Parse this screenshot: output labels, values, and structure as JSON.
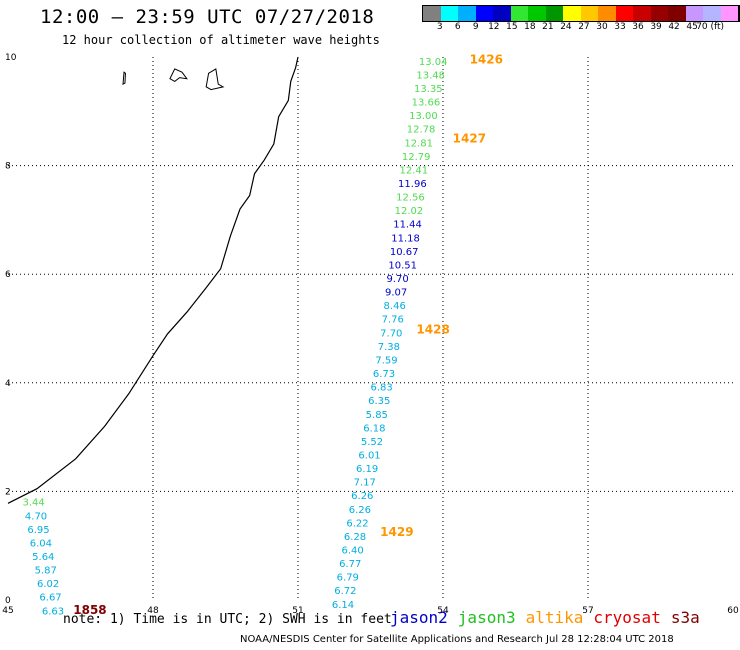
{
  "header": {
    "title": "12:00 – 23:59 UTC 07/27/2018",
    "subtitle": "12 hour collection of altimeter wave heights"
  },
  "colorbar": {
    "colors": [
      "#808080",
      "#00ffff",
      "#00b0ff",
      "#0000ff",
      "#0000c0",
      "#32e632",
      "#00c800",
      "#009600",
      "#ffff00",
      "#ffc800",
      "#ff8c00",
      "#ff0000",
      "#c80000",
      "#960000",
      "#800000",
      "#c896ff",
      "#b4b4ff",
      "#ff96ff",
      "#000000"
    ],
    "labels": [
      "3",
      "6",
      "9",
      "12",
      "15",
      "18",
      "21",
      "24",
      "27",
      "30",
      "33",
      "36",
      "39",
      "42",
      "45",
      "70 (ft)"
    ]
  },
  "chart_data": {
    "type": "scatter",
    "xlim": [
      45,
      60
    ],
    "ylim": [
      0,
      10
    ],
    "x_ticks": [
      "45",
      "48",
      "51",
      "54",
      "57",
      "60"
    ],
    "y_ticks": [
      "0",
      "2",
      "4",
      "6",
      "8",
      "10"
    ],
    "grid": true,
    "satellite_colors": {
      "jason2": "#0000cc",
      "jason3": "#20c020",
      "altika": "#ff9600",
      "cryosat": "#e00000",
      "s3a": "#800000",
      "cyan": "#00aee0",
      "green": "#50dc50",
      "blue": "#0000cc"
    },
    "points": [
      {
        "x": 53.5,
        "y": 9.93,
        "label": "13.04",
        "c": "green"
      },
      {
        "x": 53.45,
        "y": 9.68,
        "label": "13.48",
        "c": "green"
      },
      {
        "x": 53.4,
        "y": 9.43,
        "label": "13.35",
        "c": "green"
      },
      {
        "x": 53.35,
        "y": 9.18,
        "label": "13.66",
        "c": "green"
      },
      {
        "x": 53.3,
        "y": 8.93,
        "label": "13.00",
        "c": "green"
      },
      {
        "x": 53.25,
        "y": 8.68,
        "label": "12.78",
        "c": "green"
      },
      {
        "x": 53.2,
        "y": 8.43,
        "label": "12.81",
        "c": "green"
      },
      {
        "x": 53.15,
        "y": 8.18,
        "label": "12.79",
        "c": "green"
      },
      {
        "x": 53.1,
        "y": 7.93,
        "label": "12.41",
        "c": "green"
      },
      {
        "x": 53.07,
        "y": 7.68,
        "label": "11.96",
        "c": "blue"
      },
      {
        "x": 53.03,
        "y": 7.43,
        "label": "12.56",
        "c": "green"
      },
      {
        "x": 53.0,
        "y": 7.18,
        "label": "12.02",
        "c": "green"
      },
      {
        "x": 52.97,
        "y": 6.93,
        "label": "11.44",
        "c": "blue"
      },
      {
        "x": 52.93,
        "y": 6.68,
        "label": "11.18",
        "c": "blue"
      },
      {
        "x": 52.9,
        "y": 6.43,
        "label": "10.67",
        "c": "blue"
      },
      {
        "x": 52.87,
        "y": 6.18,
        "label": "10.51",
        "c": "blue"
      },
      {
        "x": 52.83,
        "y": 5.93,
        "label": "9.70",
        "c": "blue"
      },
      {
        "x": 52.8,
        "y": 5.68,
        "label": "9.07",
        "c": "blue"
      },
      {
        "x": 52.77,
        "y": 5.43,
        "label": "8.46",
        "c": "cyan"
      },
      {
        "x": 52.73,
        "y": 5.18,
        "label": "7.76",
        "c": "cyan"
      },
      {
        "x": 52.7,
        "y": 4.93,
        "label": "7.70",
        "c": "cyan"
      },
      {
        "x": 52.65,
        "y": 4.68,
        "label": "7.38",
        "c": "cyan"
      },
      {
        "x": 52.6,
        "y": 4.43,
        "label": "7.59",
        "c": "cyan"
      },
      {
        "x": 52.55,
        "y": 4.18,
        "label": "6.73",
        "c": "cyan"
      },
      {
        "x": 52.5,
        "y": 3.93,
        "label": "6.83",
        "c": "cyan"
      },
      {
        "x": 52.45,
        "y": 3.68,
        "label": "6.35",
        "c": "cyan"
      },
      {
        "x": 52.4,
        "y": 3.43,
        "label": "5.85",
        "c": "cyan"
      },
      {
        "x": 52.35,
        "y": 3.18,
        "label": "6.18",
        "c": "cyan"
      },
      {
        "x": 52.3,
        "y": 2.93,
        "label": "5.52",
        "c": "cyan"
      },
      {
        "x": 52.25,
        "y": 2.68,
        "label": "6.01",
        "c": "cyan"
      },
      {
        "x": 52.2,
        "y": 2.43,
        "label": "6.19",
        "c": "cyan"
      },
      {
        "x": 52.15,
        "y": 2.18,
        "label": "7.17",
        "c": "cyan"
      },
      {
        "x": 52.1,
        "y": 1.93,
        "label": "6.26",
        "c": "cyan"
      },
      {
        "x": 52.05,
        "y": 1.68,
        "label": "6.26",
        "c": "cyan"
      },
      {
        "x": 52.0,
        "y": 1.43,
        "label": "6.22",
        "c": "cyan"
      },
      {
        "x": 51.95,
        "y": 1.18,
        "label": "6.28",
        "c": "cyan"
      },
      {
        "x": 51.9,
        "y": 0.93,
        "label": "6.40",
        "c": "cyan"
      },
      {
        "x": 51.85,
        "y": 0.68,
        "label": "6.77",
        "c": "cyan"
      },
      {
        "x": 51.8,
        "y": 0.43,
        "label": "6.79",
        "c": "cyan"
      },
      {
        "x": 51.75,
        "y": 0.18,
        "label": "6.72",
        "c": "cyan"
      },
      {
        "x": 51.7,
        "y": -0.07,
        "label": "6.14",
        "c": "cyan"
      },
      {
        "x": 45.3,
        "y": 1.81,
        "label": "3.44",
        "c": "green"
      },
      {
        "x": 45.35,
        "y": 1.56,
        "label": "4.70",
        "c": "cyan"
      },
      {
        "x": 45.4,
        "y": 1.31,
        "label": "6.95",
        "c": "cyan"
      },
      {
        "x": 45.45,
        "y": 1.06,
        "label": "6.04",
        "c": "cyan"
      },
      {
        "x": 45.5,
        "y": 0.81,
        "label": "5.64",
        "c": "cyan"
      },
      {
        "x": 45.55,
        "y": 0.56,
        "label": "5.87",
        "c": "cyan"
      },
      {
        "x": 45.6,
        "y": 0.31,
        "label": "6.02",
        "c": "cyan"
      },
      {
        "x": 45.65,
        "y": 0.06,
        "label": "6.67",
        "c": "cyan"
      },
      {
        "x": 45.7,
        "y": -0.19,
        "label": "6.63",
        "c": "cyan"
      }
    ],
    "time_labels": [
      {
        "x": 54.55,
        "y": 9.95,
        "label": "1426",
        "c": "altika"
      },
      {
        "x": 54.2,
        "y": 8.5,
        "label": "1427",
        "c": "altika"
      },
      {
        "x": 53.45,
        "y": 4.98,
        "label": "1428",
        "c": "altika"
      },
      {
        "x": 52.7,
        "y": 1.25,
        "label": "1429",
        "c": "altika"
      },
      {
        "x": 46.35,
        "y": -0.18,
        "label": "1858",
        "c": "s3a"
      }
    ],
    "coastline": [
      [
        45.0,
        1.78
      ],
      [
        45.6,
        2.05
      ],
      [
        46.4,
        2.6
      ],
      [
        47.0,
        3.2
      ],
      [
        47.5,
        3.8
      ],
      [
        48.0,
        4.5
      ],
      [
        48.3,
        4.9
      ],
      [
        48.7,
        5.3
      ],
      [
        49.1,
        5.75
      ],
      [
        49.4,
        6.1
      ],
      [
        49.6,
        6.7
      ],
      [
        49.8,
        7.2
      ],
      [
        50.0,
        7.45
      ],
      [
        50.1,
        7.85
      ],
      [
        50.3,
        8.1
      ],
      [
        50.5,
        8.4
      ],
      [
        50.6,
        8.9
      ],
      [
        50.8,
        9.2
      ],
      [
        50.85,
        9.55
      ],
      [
        50.95,
        9.8
      ],
      [
        51.0,
        10.0
      ]
    ],
    "islands": [
      [
        [
          47.38,
          9.5
        ],
        [
          47.4,
          9.72
        ],
        [
          47.43,
          9.7
        ],
        [
          47.42,
          9.52
        ]
      ],
      [
        [
          48.35,
          9.6
        ],
        [
          48.45,
          9.78
        ],
        [
          48.6,
          9.72
        ],
        [
          48.7,
          9.6
        ],
        [
          48.55,
          9.62
        ],
        [
          48.45,
          9.55
        ]
      ],
      [
        [
          49.1,
          9.45
        ],
        [
          49.15,
          9.7
        ],
        [
          49.3,
          9.78
        ],
        [
          49.35,
          9.5
        ],
        [
          49.45,
          9.45
        ],
        [
          49.2,
          9.4
        ]
      ]
    ]
  },
  "legend": {
    "items": [
      {
        "label": "jason2",
        "color": "#0000cc"
      },
      {
        "label": "jason3",
        "color": "#20c020"
      },
      {
        "label": "altika",
        "color": "#ff9600"
      },
      {
        "label": "cryosat",
        "color": "#e00000"
      },
      {
        "label": "s3a",
        "color": "#800000"
      }
    ]
  },
  "note": "note: 1) Time is in UTC; 2) SWH is in feet",
  "footer": "NOAA/NESDIS Center for Satellite Applications and Research   Jul 28 12:28:04 UTC 2018"
}
